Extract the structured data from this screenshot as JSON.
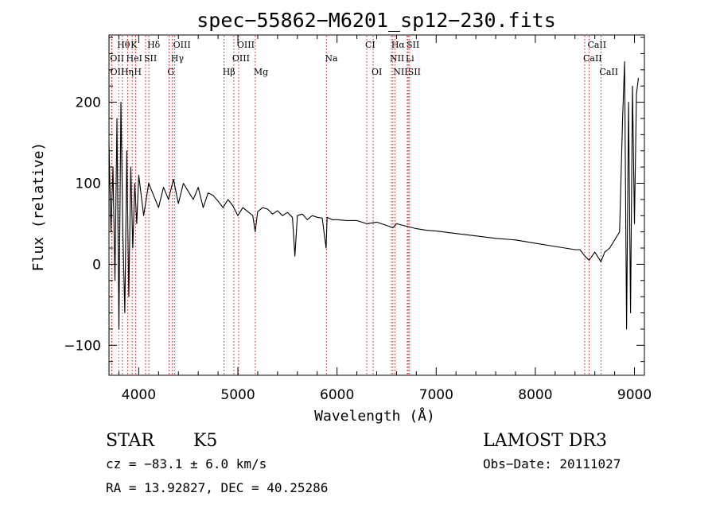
{
  "chart_data": {
    "type": "line",
    "title": "spec−55862−M6201_sp12−230.fits",
    "xlabel": "Wavelength (Å)",
    "ylabel": "Flux (relative)",
    "xlim": [
      3700,
      9100
    ],
    "ylim": [
      -137,
      283
    ],
    "x_ticks": [
      4000,
      5000,
      6000,
      7000,
      8000,
      9000
    ],
    "x_tick_labels": [
      "4000",
      "5000",
      "6000",
      "7000",
      "8000",
      "9000"
    ],
    "y_ticks": [
      -100,
      0,
      100,
      200
    ],
    "y_tick_labels": [
      "−100",
      "0",
      "100",
      "200"
    ],
    "series": [
      {
        "name": "spectrum",
        "x": [
          3700,
          3720,
          3740,
          3760,
          3780,
          3800,
          3820,
          3840,
          3860,
          3880,
          3900,
          3920,
          3940,
          3960,
          3980,
          4000,
          4050,
          4100,
          4150,
          4200,
          4250,
          4300,
          4350,
          4400,
          4450,
          4500,
          4550,
          4600,
          4650,
          4700,
          4750,
          4800,
          4850,
          4900,
          4950,
          5000,
          5050,
          5100,
          5150,
          5175,
          5200,
          5250,
          5300,
          5350,
          5400,
          5450,
          5500,
          5550,
          5575,
          5600,
          5650,
          5700,
          5750,
          5800,
          5850,
          5890,
          5900,
          5950,
          6000,
          6100,
          6200,
          6300,
          6400,
          6500,
          6563,
          6600,
          6700,
          6800,
          6900,
          7000,
          7200,
          7400,
          7600,
          7800,
          8000,
          8200,
          8400,
          8450,
          8500,
          8542,
          8600,
          8662,
          8700,
          8750,
          8800,
          8850,
          8880,
          8900,
          8920,
          8940,
          8960,
          8980,
          9000,
          9020,
          9040
        ],
        "y": [
          150,
          40,
          120,
          -20,
          180,
          -80,
          200,
          40,
          -60,
          140,
          -40,
          120,
          20,
          100,
          50,
          110,
          60,
          100,
          85,
          70,
          95,
          80,
          105,
          75,
          100,
          90,
          80,
          95,
          70,
          88,
          85,
          78,
          70,
          80,
          72,
          60,
          70,
          65,
          60,
          40,
          65,
          70,
          68,
          62,
          66,
          60,
          64,
          58,
          10,
          60,
          62,
          55,
          60,
          58,
          57,
          20,
          58,
          55,
          55,
          54,
          54,
          50,
          52,
          48,
          45,
          50,
          47,
          44,
          42,
          41,
          38,
          35,
          32,
          30,
          26,
          22,
          18,
          18,
          10,
          5,
          15,
          3,
          15,
          20,
          30,
          40,
          180,
          250,
          -80,
          200,
          -60,
          220,
          50,
          210,
          230
        ]
      }
    ],
    "spectral_lines": [
      {
        "label": "Hθ",
        "wavelength": 3798,
        "row": 0
      },
      {
        "label": "K",
        "wavelength": 3934,
        "row": 0
      },
      {
        "label": "Hδ",
        "wavelength": 4102,
        "row": 0
      },
      {
        "label": "OIII",
        "wavelength": 4363,
        "row": 0
      },
      {
        "label": "OIII",
        "wavelength": 5007,
        "row": 0
      },
      {
        "label": "CI",
        "wavelength": 6300,
        "row": 0
      },
      {
        "label": "Hα",
        "wavelength": 6563,
        "row": 0
      },
      {
        "label": "SII",
        "wavelength": 6717,
        "row": 0
      },
      {
        "label": "CaII",
        "wavelength": 8542,
        "row": 0
      },
      {
        "label": "OII",
        "wavelength": 3727,
        "row": 1
      },
      {
        "label": "HeI",
        "wavelength": 3889,
        "row": 1
      },
      {
        "label": "SII",
        "wavelength": 4069,
        "row": 1
      },
      {
        "label": "Hγ",
        "wavelength": 4340,
        "row": 1
      },
      {
        "label": "OIII",
        "wavelength": 4959,
        "row": 1
      },
      {
        "label": "Na",
        "wavelength": 5893,
        "row": 1
      },
      {
        "label": "NII",
        "wavelength": 6548,
        "row": 1
      },
      {
        "label": "Li",
        "wavelength": 6708,
        "row": 1
      },
      {
        "label": "CaII",
        "wavelength": 8498,
        "row": 1
      },
      {
        "label": "OII",
        "wavelength": 3729,
        "row": 2
      },
      {
        "label": "Hη",
        "wavelength": 3835,
        "row": 2
      },
      {
        "label": "H",
        "wavelength": 3968,
        "row": 2
      },
      {
        "label": "G",
        "wavelength": 4305,
        "row": 2
      },
      {
        "label": "Hβ",
        "wavelength": 4861,
        "row": 2
      },
      {
        "label": "Mg",
        "wavelength": 5175,
        "row": 2
      },
      {
        "label": "OI",
        "wavelength": 6364,
        "row": 2
      },
      {
        "label": "NII",
        "wavelength": 6583,
        "row": 2
      },
      {
        "label": "SII",
        "wavelength": 6731,
        "row": 2
      },
      {
        "label": "CaII",
        "wavelength": 8662,
        "row": 2
      }
    ],
    "line_color": "#cc0000",
    "spectrum_color": "#000000"
  },
  "info": {
    "object_class": "STAR",
    "subclass": "K5",
    "survey": "LAMOST DR3",
    "cz": "cz = −83.1 ± 6.0 km/s",
    "obs_date": "Obs−Date: 20111027",
    "coords": "RA =  13.92827, DEC =  40.25286"
  }
}
